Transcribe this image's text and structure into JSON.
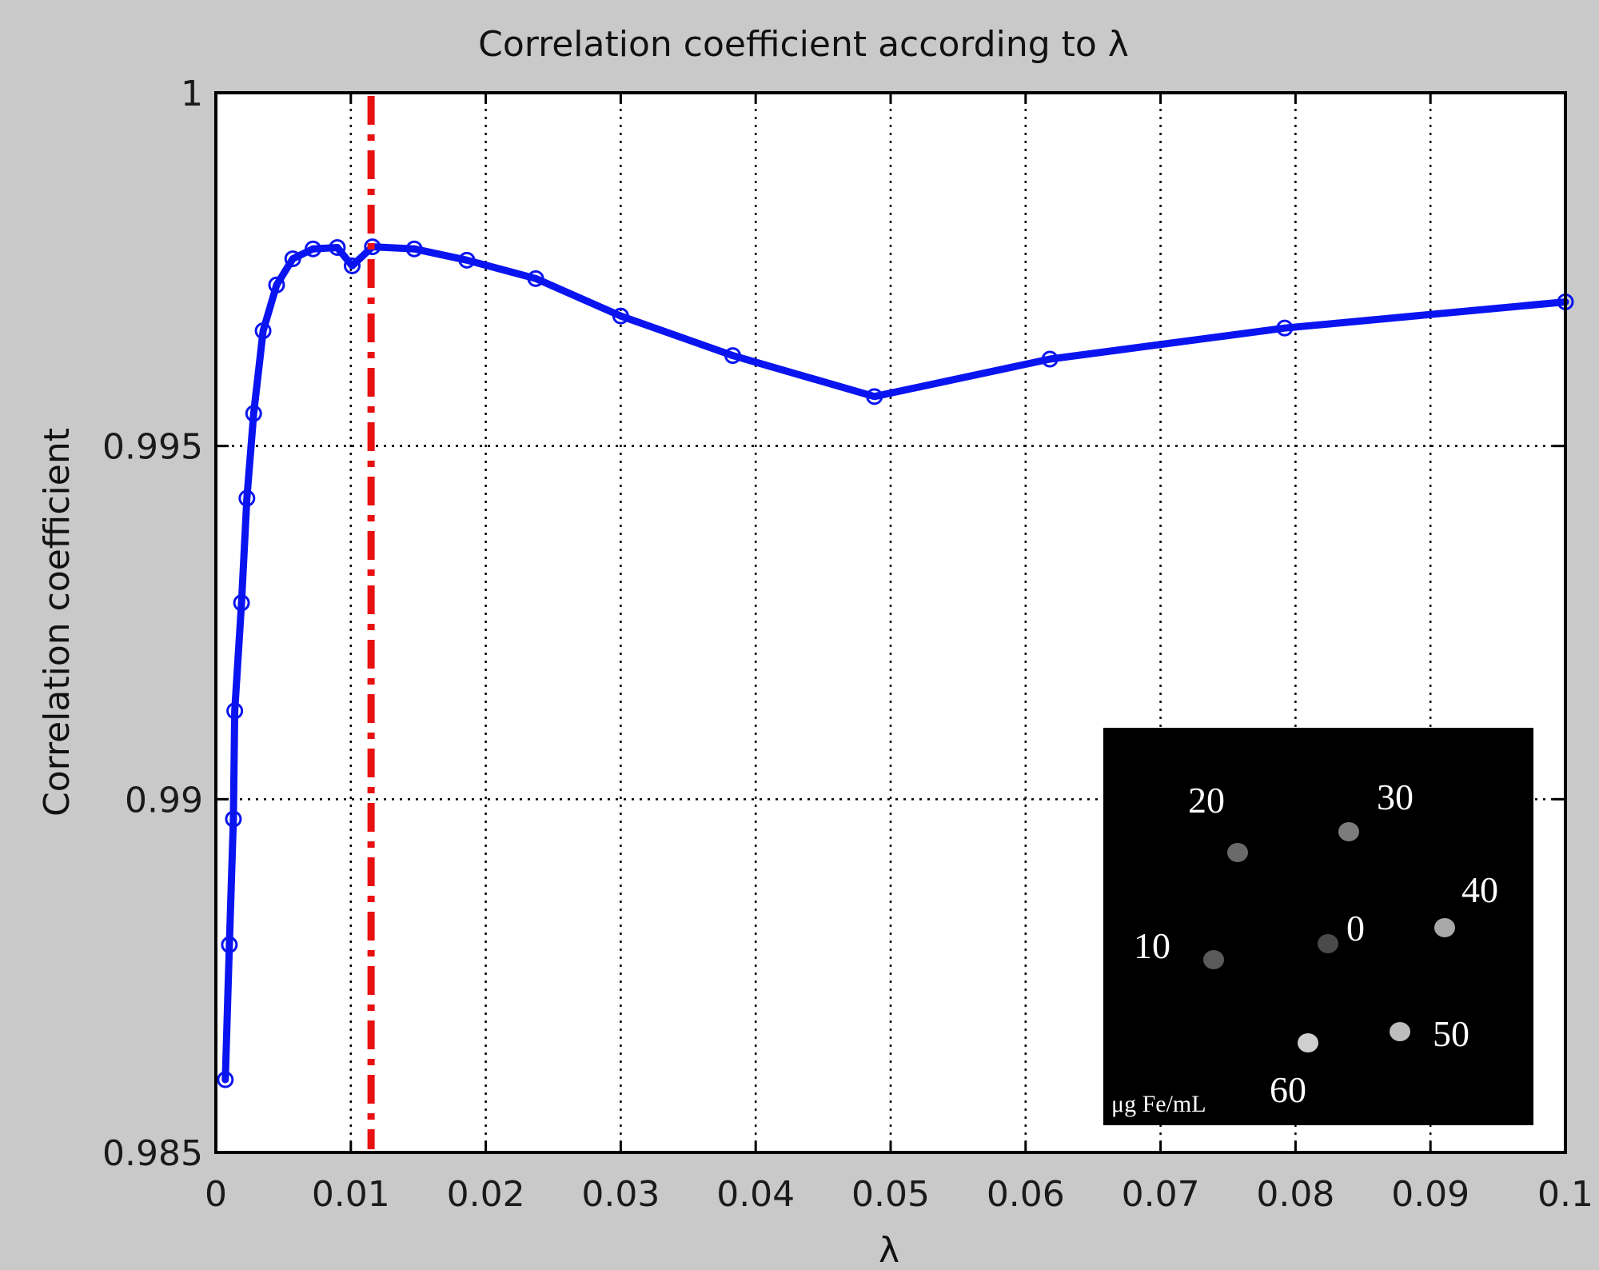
{
  "chart_data": {
    "type": "line",
    "title": "Correlation coefficient according to λ",
    "xlabel": "λ",
    "ylabel": "Correlation coefficient",
    "xlim": [
      0,
      0.1
    ],
    "ylim": [
      0.985,
      1
    ],
    "xticks": [
      0,
      0.01,
      0.02,
      0.03,
      0.04,
      0.05,
      0.06,
      0.07,
      0.08,
      0.09,
      0.1
    ],
    "xtick_labels": [
      "0",
      "0.01",
      "0.02",
      "0.03",
      "0.04",
      "0.05",
      "0.06",
      "0.07",
      "0.08",
      "0.09",
      "0.1"
    ],
    "yticks": [
      0.985,
      0.99,
      0.995,
      1
    ],
    "ytick_labels": [
      "0.985",
      "0.99",
      "0.995",
      "1"
    ],
    "grid": true,
    "series": [
      {
        "color": "#0a14f0",
        "marker": "circle",
        "points": [
          [
            0.0007,
            0.98603
          ],
          [
            0.001,
            0.98794
          ],
          [
            0.0013,
            0.98972
          ],
          [
            0.0014,
            0.99125
          ],
          [
            0.0019,
            0.99278
          ],
          [
            0.0023,
            0.99426
          ],
          [
            0.0028,
            0.99546
          ],
          [
            0.0035,
            0.99663
          ],
          [
            0.0045,
            0.99728
          ],
          [
            0.0057,
            0.99765
          ],
          [
            0.0072,
            0.99779
          ],
          [
            0.009,
            0.99781
          ],
          [
            0.0101,
            0.99755
          ],
          [
            0.0116,
            0.99782
          ],
          [
            0.0147,
            0.99779
          ],
          [
            0.0186,
            0.99763
          ],
          [
            0.0237,
            0.99737
          ],
          [
            0.03,
            0.99684
          ],
          [
            0.0383,
            0.99628
          ],
          [
            0.0488,
            0.9957
          ],
          [
            0.0618,
            0.99623
          ],
          [
            0.0792,
            0.99667
          ],
          [
            0.1,
            0.99704
          ]
        ]
      }
    ],
    "vline": {
      "x": 0.0115,
      "color": "#e81010",
      "style": "dash-dot"
    }
  },
  "inset": {
    "background": "#000000",
    "unit": "μg Fe/mL",
    "samples": [
      {
        "label": "0",
        "gray": "#4a4a4a"
      },
      {
        "label": "10",
        "gray": "#5a5a5a"
      },
      {
        "label": "20",
        "gray": "#6a6a6a"
      },
      {
        "label": "30",
        "gray": "#7c7c7c"
      },
      {
        "label": "40",
        "gray": "#a8a8a8"
      },
      {
        "label": "50",
        "gray": "#bdbdbd"
      },
      {
        "label": "60",
        "gray": "#cfcfcf"
      }
    ]
  }
}
